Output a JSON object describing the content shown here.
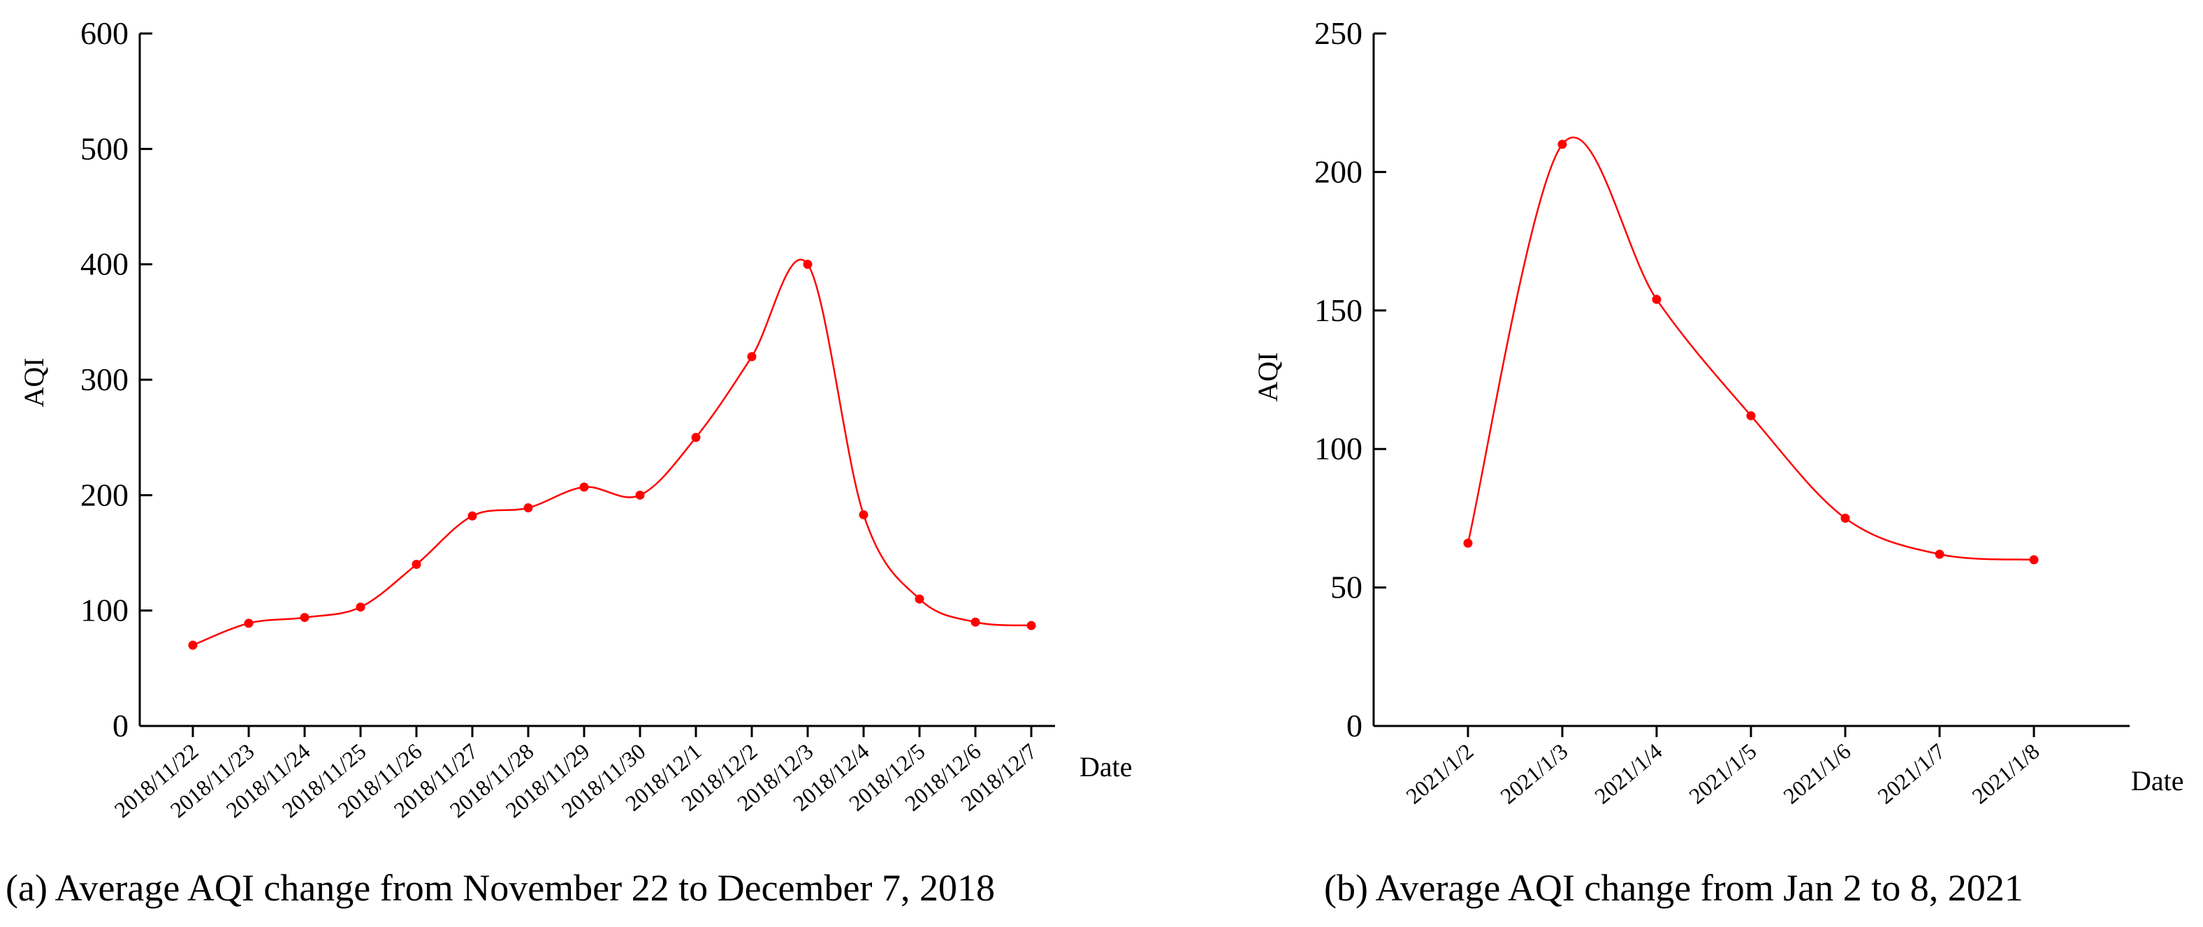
{
  "chart_data": [
    {
      "type": "line",
      "caption": "(a) Average AQI change from November 22 to December 7, 2018",
      "xlabel": "Date",
      "ylabel": "AQI",
      "ylim": [
        0,
        600
      ],
      "yticks": [
        "0",
        "100",
        "200",
        "300",
        "400",
        "500",
        "600"
      ],
      "categories": [
        "2018/11/22",
        "2018/11/23",
        "2018/11/24",
        "2018/11/25",
        "2018/11/26",
        "2018/11/27",
        "2018/11/28",
        "2018/11/29",
        "2018/11/30",
        "2018/12/1",
        "2018/12/2",
        "2018/12/3",
        "2018/12/4",
        "2018/12/5",
        "2018/12/6",
        "2018/12/7"
      ],
      "series": [
        {
          "name": "Average AQI",
          "color": "#ff0000",
          "values": [
            70,
            89,
            94,
            103,
            140,
            182,
            189,
            207,
            200,
            250,
            320,
            400,
            183,
            110,
            90,
            87
          ]
        }
      ],
      "grid": false
    },
    {
      "type": "line",
      "caption": "(b) Average AQI change from Jan 2 to 8, 2021",
      "xlabel": "Date",
      "ylabel": "AQI",
      "ylim": [
        0,
        250
      ],
      "yticks": [
        "0",
        "50",
        "100",
        "150",
        "200",
        "250"
      ],
      "categories": [
        "2021/1/2",
        "2021/1/3",
        "2021/1/4",
        "2021/1/5",
        "2021/1/6",
        "2021/1/7",
        "2021/1/8"
      ],
      "series": [
        {
          "name": "Average AQI",
          "color": "#ff0000",
          "values": [
            66,
            210,
            154,
            112,
            75,
            62,
            60
          ]
        }
      ],
      "grid": false
    }
  ]
}
